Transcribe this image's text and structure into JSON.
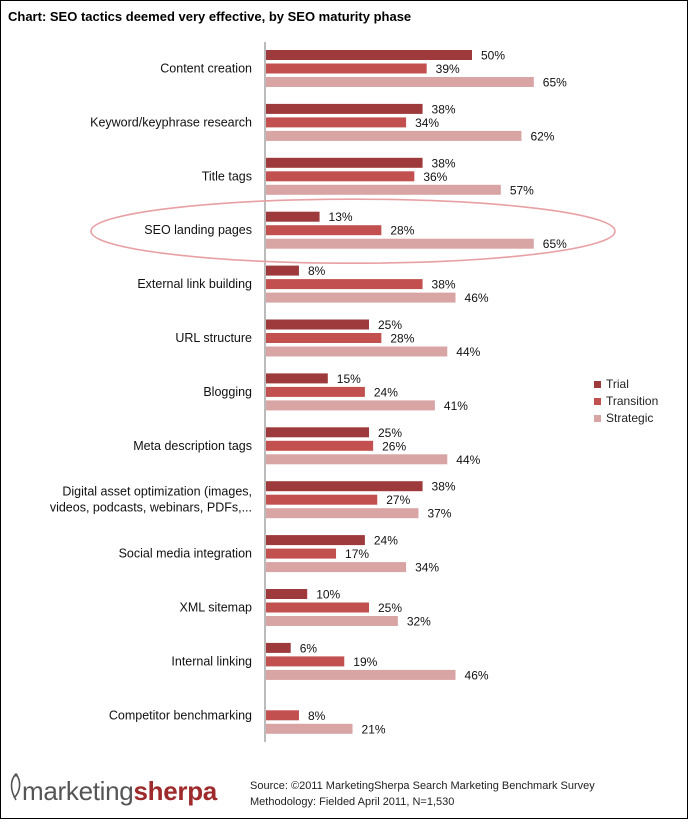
{
  "title": "Chart: SEO tactics deemed very effective, by SEO maturity phase",
  "chart_data": {
    "type": "bar",
    "orientation": "horizontal",
    "categories": [
      "Content creation",
      "Keyword/keyphrase research",
      "Title tags",
      "SEO landing pages",
      "External link building",
      "URL structure",
      "Blogging",
      "Meta description tags",
      "Digital asset optimization (images, videos, podcasts, webinars, PDFs,...",
      "Social media integration",
      "XML sitemap",
      "Internal linking",
      "Competitor benchmarking"
    ],
    "category_lines": [
      [
        "Content creation"
      ],
      [
        "Keyword/keyphrase research"
      ],
      [
        "Title tags"
      ],
      [
        "SEO landing pages"
      ],
      [
        "External link building"
      ],
      [
        "URL structure"
      ],
      [
        "Blogging"
      ],
      [
        "Meta description tags"
      ],
      [
        "Digital asset optimization (images,",
        "videos, podcasts, webinars, PDFs,..."
      ],
      [
        "Social media integration"
      ],
      [
        "XML sitemap"
      ],
      [
        "Internal linking"
      ],
      [
        "Competitor benchmarking"
      ]
    ],
    "series": [
      {
        "name": "Trial",
        "color": "#9e3a3c",
        "values": [
          50,
          38,
          38,
          13,
          8,
          25,
          15,
          25,
          38,
          24,
          10,
          6,
          null
        ]
      },
      {
        "name": "Transition",
        "color": "#c2504f",
        "values": [
          39,
          34,
          36,
          28,
          38,
          28,
          24,
          26,
          27,
          17,
          25,
          19,
          8
        ]
      },
      {
        "name": "Strategic",
        "color": "#d9a4a4",
        "values": [
          65,
          62,
          57,
          65,
          46,
          44,
          41,
          44,
          37,
          34,
          32,
          46,
          21
        ]
      }
    ],
    "value_suffix": "%",
    "xlim": [
      0,
      100
    ],
    "legend_position": "right",
    "highlighted_category": "SEO landing pages"
  },
  "logo": {
    "part1": "marketing",
    "part2": "sherpa"
  },
  "source": {
    "line1": "Source: ©2011 MarketingSherpa Search Marketing Benchmark Survey",
    "line2": "Methodology: Fielded April 2011, N=1,530"
  }
}
